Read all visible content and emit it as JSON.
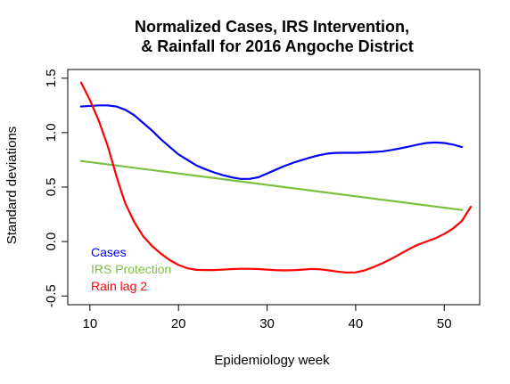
{
  "chart_data": {
    "type": "line",
    "title_lines": [
      "Normalized Cases, IRS Intervention,",
      "& Rainfall for 2016 Angoche District"
    ],
    "xlabel": "Epidemiology week",
    "ylabel": "Standard deviations",
    "xlim": [
      7.5,
      54
    ],
    "ylim": [
      -0.58,
      1.58
    ],
    "x_ticks": [
      10,
      20,
      30,
      40,
      50
    ],
    "y_ticks": [
      -0.5,
      0.0,
      0.5,
      1.0,
      1.5
    ],
    "x_tick_labels": [
      "10",
      "20",
      "30",
      "40",
      "50"
    ],
    "y_tick_labels": [
      "-0.5",
      "0.0",
      "0.5",
      "1.0",
      "1.5"
    ],
    "grid": false,
    "legend_position": "bottom-left",
    "series": [
      {
        "name": "Cases",
        "color": "#0000ff",
        "x": [
          9,
          10,
          11,
          12,
          13,
          14,
          15,
          16,
          17,
          18,
          19,
          20,
          21,
          22,
          23,
          24,
          25,
          26,
          27,
          28,
          29,
          30,
          31,
          32,
          33,
          34,
          35,
          36,
          37,
          38,
          39,
          40,
          41,
          42,
          43,
          44,
          45,
          46,
          47,
          48,
          49,
          50,
          51,
          52
        ],
        "y": [
          1.24,
          1.245,
          1.25,
          1.25,
          1.24,
          1.21,
          1.16,
          1.09,
          1.02,
          0.94,
          0.87,
          0.8,
          0.75,
          0.7,
          0.665,
          0.635,
          0.61,
          0.59,
          0.575,
          0.575,
          0.59,
          0.625,
          0.66,
          0.695,
          0.725,
          0.75,
          0.775,
          0.795,
          0.81,
          0.815,
          0.815,
          0.815,
          0.818,
          0.822,
          0.828,
          0.84,
          0.855,
          0.872,
          0.89,
          0.905,
          0.91,
          0.905,
          0.89,
          0.868
        ]
      },
      {
        "name": "IRS Protection",
        "color": "#7ac142",
        "x": [
          9,
          52
        ],
        "y": [
          0.74,
          0.29
        ]
      },
      {
        "name": "Rain lag 2",
        "color": "#ff0000",
        "x": [
          9,
          10,
          11,
          12,
          12.5,
          13,
          13.5,
          14,
          15,
          16,
          17,
          18,
          19,
          20,
          21,
          22,
          23,
          24,
          25,
          26,
          27,
          28,
          29,
          30,
          31,
          32,
          33,
          34,
          35,
          36,
          37,
          38,
          39,
          40,
          41,
          42,
          43,
          44,
          45,
          46,
          47,
          48,
          49,
          50,
          51,
          52,
          53
        ],
        "y": [
          1.46,
          1.3,
          1.11,
          0.88,
          0.74,
          0.6,
          0.47,
          0.35,
          0.18,
          0.05,
          -0.04,
          -0.11,
          -0.17,
          -0.215,
          -0.245,
          -0.26,
          -0.262,
          -0.262,
          -0.258,
          -0.253,
          -0.25,
          -0.25,
          -0.253,
          -0.258,
          -0.263,
          -0.265,
          -0.263,
          -0.258,
          -0.252,
          -0.255,
          -0.265,
          -0.277,
          -0.285,
          -0.283,
          -0.265,
          -0.235,
          -0.2,
          -0.16,
          -0.115,
          -0.07,
          -0.03,
          0.0,
          0.03,
          0.07,
          0.12,
          0.19,
          0.32
        ]
      }
    ]
  }
}
